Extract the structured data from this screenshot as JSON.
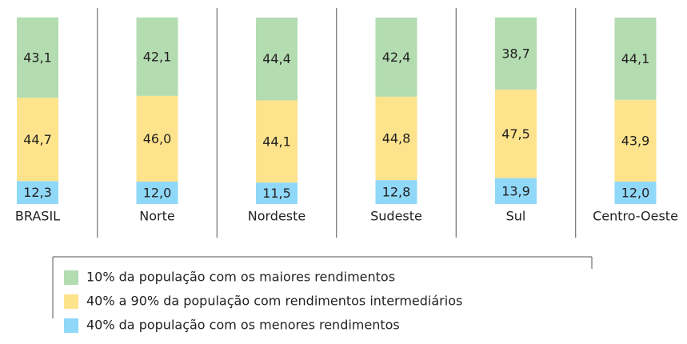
{
  "chart_data": {
    "type": "stacked-bar",
    "categories": [
      "BRASIL",
      "Norte",
      "Nordeste",
      "Sudeste",
      "Sul",
      "Centro-Oeste"
    ],
    "series": [
      {
        "name": "10% da população com os maiores rendimentos",
        "color": "#b3dcb1",
        "values": [
          43.1,
          42.1,
          44.4,
          42.4,
          38.7,
          44.1
        ],
        "value_labels": [
          "43,1",
          "42,1",
          "44,4",
          "42,4",
          "38,7",
          "44,1"
        ]
      },
      {
        "name": "40% a 90% da população com rendimentos intermediários",
        "color": "#fde38c",
        "values": [
          44.7,
          46.0,
          44.1,
          44.8,
          47.5,
          43.9
        ],
        "value_labels": [
          "44,7",
          "46,0",
          "44,1",
          "44,8",
          "47,5",
          "43,9"
        ]
      },
      {
        "name": "40% da população com os menores rendimentos",
        "color": "#8fd8f8",
        "values": [
          12.3,
          12.0,
          11.5,
          12.8,
          13.9,
          12.0
        ],
        "value_labels": [
          "12,3",
          "12,0",
          "11,5",
          "12,8",
          "13,9",
          "12,0"
        ]
      }
    ]
  }
}
